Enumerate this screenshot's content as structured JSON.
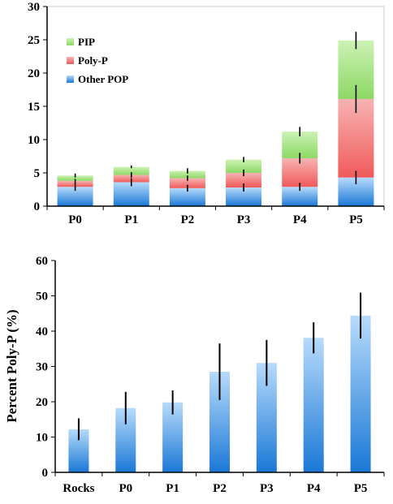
{
  "chart_data": [
    {
      "type": "bar",
      "stacked": true,
      "categories": [
        "P0",
        "P1",
        "P2",
        "P3",
        "P4",
        "P5"
      ],
      "ylim": [
        0,
        30
      ],
      "yticks": [
        0,
        5,
        10,
        15,
        20,
        25,
        30
      ],
      "ylabel": "",
      "legend_position": "top-left",
      "series": [
        {
          "name": "Other POP",
          "color": "#4f9fe8",
          "values": [
            2.9,
            3.6,
            2.7,
            2.8,
            2.9,
            4.3
          ],
          "errors": [
            0.6,
            0.6,
            0.5,
            0.6,
            0.6,
            1.0
          ]
        },
        {
          "name": "Poly-P",
          "color": "#f26b6b",
          "values": [
            0.9,
            1.1,
            1.5,
            2.2,
            4.3,
            11.8
          ],
          "errors": [
            0.3,
            0.4,
            0.4,
            0.5,
            0.8,
            2.1
          ]
        },
        {
          "name": "PIP",
          "color": "#8fd867",
          "values": [
            0.8,
            1.2,
            1.1,
            2.0,
            4.0,
            8.8
          ],
          "errors": [
            0.3,
            0.2,
            0.4,
            0.4,
            0.7,
            1.3
          ]
        }
      ],
      "legend_order": [
        "PIP",
        "Poly-P",
        "Other POP"
      ]
    },
    {
      "type": "bar",
      "categories": [
        "Rocks",
        "P0",
        "P1",
        "P2",
        "P3",
        "P4",
        "P5"
      ],
      "ylim": [
        0,
        60
      ],
      "yticks": [
        0,
        10,
        20,
        30,
        40,
        50,
        60
      ],
      "ylabel": "Percent Poly-P (%)",
      "color": "#66aef0",
      "values": [
        12.2,
        18.2,
        19.8,
        28.5,
        31.0,
        38.1,
        44.4
      ],
      "errors": [
        3.1,
        4.6,
        3.4,
        8.0,
        6.5,
        4.4,
        6.5
      ]
    }
  ]
}
